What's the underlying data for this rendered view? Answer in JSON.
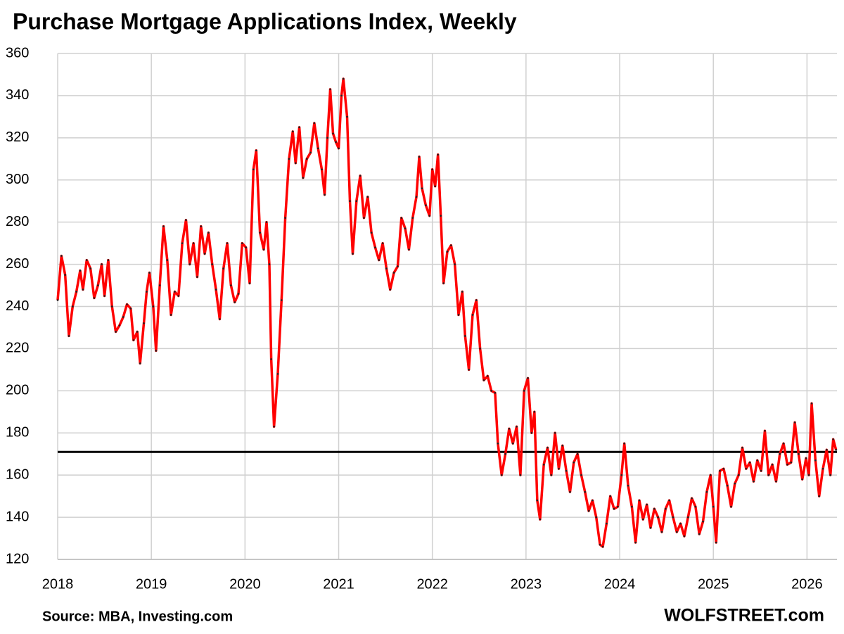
{
  "chart_data": {
    "type": "line",
    "title": "Purchase Mortgage Applications Index, Weekly",
    "source": "Source: MBA, Investing.com",
    "watermark": "WOLFSTREET.com",
    "grid": true,
    "reference_line": 171,
    "xlim": [
      2018,
      2026.32
    ],
    "ylim": [
      120,
      360
    ],
    "xticks": [
      2018,
      2019,
      2020,
      2021,
      2022,
      2023,
      2024,
      2025,
      2026
    ],
    "yticks": [
      120,
      140,
      160,
      180,
      200,
      220,
      240,
      260,
      280,
      300,
      320,
      340,
      360
    ],
    "x": [
      2018.0,
      2018.04,
      2018.08,
      2018.12,
      2018.16,
      2018.2,
      2018.24,
      2018.27,
      2018.31,
      2018.35,
      2018.39,
      2018.43,
      2018.47,
      2018.5,
      2018.54,
      2018.58,
      2018.62,
      2018.66,
      2018.7,
      2018.74,
      2018.78,
      2018.81,
      2018.85,
      2018.88,
      2018.92,
      2018.95,
      2018.98,
      2019.02,
      2019.05,
      2019.09,
      2019.13,
      2019.17,
      2019.21,
      2019.25,
      2019.29,
      2019.33,
      2019.37,
      2019.41,
      2019.45,
      2019.49,
      2019.53,
      2019.57,
      2019.61,
      2019.65,
      2019.69,
      2019.73,
      2019.77,
      2019.81,
      2019.85,
      2019.89,
      2019.93,
      2019.97,
      2020.01,
      2020.05,
      2020.09,
      2020.12,
      2020.16,
      2020.2,
      2020.23,
      2020.26,
      2020.28,
      2020.31,
      2020.35,
      2020.39,
      2020.43,
      2020.47,
      2020.51,
      2020.54,
      2020.58,
      2020.62,
      2020.66,
      2020.7,
      2020.74,
      2020.78,
      2020.82,
      2020.85,
      2020.88,
      2020.91,
      2020.94,
      2020.97,
      2021.0,
      2021.03,
      2021.05,
      2021.09,
      2021.12,
      2021.15,
      2021.19,
      2021.23,
      2021.27,
      2021.31,
      2021.35,
      2021.39,
      2021.43,
      2021.47,
      2021.51,
      2021.55,
      2021.59,
      2021.63,
      2021.67,
      2021.71,
      2021.75,
      2021.79,
      2021.83,
      2021.86,
      2021.89,
      2021.93,
      2021.97,
      2022.0,
      2022.03,
      2022.06,
      2022.09,
      2022.12,
      2022.16,
      2022.2,
      2022.24,
      2022.28,
      2022.32,
      2022.35,
      2022.39,
      2022.43,
      2022.47,
      2022.51,
      2022.55,
      2022.59,
      2022.63,
      2022.67,
      2022.7,
      2022.74,
      2022.78,
      2022.82,
      2022.86,
      2022.9,
      2022.94,
      2022.98,
      2023.02,
      2023.06,
      2023.09,
      2023.12,
      2023.15,
      2023.19,
      2023.23,
      2023.27,
      2023.31,
      2023.35,
      2023.39,
      2023.43,
      2023.47,
      2023.51,
      2023.55,
      2023.59,
      2023.63,
      2023.67,
      2023.71,
      2023.75,
      2023.79,
      2023.82,
      2023.86,
      2023.9,
      2023.94,
      2023.98,
      2024.02,
      2024.05,
      2024.09,
      2024.13,
      2024.17,
      2024.21,
      2024.25,
      2024.29,
      2024.33,
      2024.37,
      2024.41,
      2024.45,
      2024.49,
      2024.53,
      2024.57,
      2024.61,
      2024.65,
      2024.69,
      2024.73,
      2024.77,
      2024.81,
      2024.85,
      2024.89,
      2024.93,
      2024.97,
      2025.0,
      2025.03,
      2025.07,
      2025.11,
      2025.15,
      2025.19,
      2025.23,
      2025.27,
      2025.31,
      2025.35,
      2025.39,
      2025.43,
      2025.47,
      2025.51,
      2025.55,
      2025.59,
      2025.63,
      2025.67,
      2025.71,
      2025.75,
      2025.79,
      2025.83,
      2025.87,
      2025.91,
      2025.95,
      2025.99,
      2026.02,
      2026.05,
      2026.09,
      2026.13,
      2026.17,
      2026.21,
      2026.25,
      2026.28,
      2026.31
    ],
    "series": [
      {
        "name": "Purchase Mortgage Applications Index",
        "color": "#ff0000",
        "values": [
          243,
          264,
          255,
          226,
          240,
          247,
          257,
          248,
          262,
          258,
          244,
          250,
          260,
          245,
          262,
          240,
          228,
          231,
          235,
          241,
          239,
          224,
          228,
          213,
          232,
          247,
          256,
          240,
          219,
          250,
          278,
          262,
          236,
          247,
          245,
          270,
          281,
          260,
          270,
          254,
          278,
          265,
          275,
          260,
          248,
          234,
          258,
          270,
          250,
          242,
          246,
          270,
          268,
          251,
          305,
          314,
          275,
          267,
          280,
          260,
          215,
          183,
          208,
          243,
          282,
          310,
          323,
          308,
          325,
          301,
          310,
          313,
          327,
          315,
          305,
          293,
          320,
          343,
          322,
          318,
          315,
          340,
          348,
          330,
          290,
          265,
          290,
          302,
          282,
          292,
          275,
          268,
          262,
          270,
          258,
          248,
          256,
          259,
          282,
          277,
          267,
          282,
          292,
          311,
          296,
          288,
          283,
          305,
          297,
          312,
          283,
          251,
          266,
          269,
          260,
          236,
          247,
          226,
          210,
          236,
          243,
          220,
          205,
          207,
          200,
          199,
          175,
          160,
          170,
          182,
          175,
          183,
          160,
          200,
          206,
          180,
          190,
          148,
          139,
          165,
          173,
          160,
          180,
          163,
          174,
          162,
          152,
          166,
          170,
          160,
          152,
          143,
          148,
          140,
          127,
          126,
          137,
          150,
          144,
          145,
          160,
          175,
          155,
          145,
          128,
          148,
          139,
          146,
          135,
          144,
          140,
          133,
          144,
          148,
          140,
          133,
          137,
          131,
          140,
          149,
          145,
          132,
          138,
          152,
          160,
          145,
          128,
          162,
          163,
          155,
          145,
          156,
          160,
          173,
          163,
          166,
          157,
          167,
          162,
          181,
          160,
          165,
          157,
          170,
          175,
          165,
          166,
          185,
          170,
          158,
          168,
          160,
          194,
          167,
          150,
          163,
          172,
          160,
          177,
          172
        ]
      }
    ]
  }
}
